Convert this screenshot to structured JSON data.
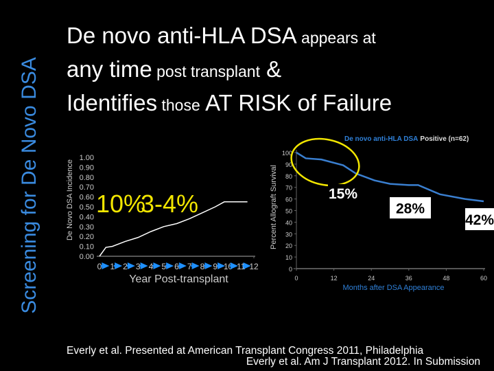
{
  "slide": {
    "side_title": "Screening for De Novo DSA",
    "headline": [
      [
        {
          "text": "De novo anti-HLA DSA",
          "big": true
        },
        {
          "text": " appears at",
          "big": false
        }
      ],
      [
        {
          "text": "any time",
          "big": true
        },
        {
          "text": " post transplant",
          "big": false
        },
        {
          "text": " &",
          "big": true
        }
      ],
      [
        {
          "text": "Identifies",
          "big": true
        },
        {
          "text": " those",
          "big": false
        },
        {
          "text": " AT RISK of Failure",
          "big": true
        }
      ]
    ],
    "citations": [
      "Everly et al. Presented at American Transplant Congress 2011, Philadelphia",
      "Everly et al. Am J Transplant 2012. In Submission"
    ]
  },
  "chart_data": [
    {
      "type": "line",
      "y_label": "De Novo DSA Incidence",
      "x_label": "Year Post-transplant",
      "x": [
        0,
        0.5,
        1,
        2,
        3,
        4,
        5,
        6,
        7,
        8,
        9,
        9.7,
        10,
        11,
        11.5
      ],
      "values": [
        0,
        0.09,
        0.1,
        0.15,
        0.19,
        0.25,
        0.3,
        0.33,
        0.38,
        0.44,
        0.5,
        0.55,
        0.55,
        0.55,
        0.55
      ],
      "color": "#ffffff",
      "tick_marker_color": "#1e90ff",
      "xlim": [
        0,
        12
      ],
      "xticks": [
        0,
        1,
        2,
        3,
        4,
        5,
        6,
        7,
        8,
        9,
        10,
        11,
        12
      ],
      "ylim": [
        0,
        1
      ],
      "yticks": [
        {
          "value": 0,
          "label": "0.00"
        },
        {
          "value": 0.1,
          "label": "0.10"
        },
        {
          "value": 0.2,
          "label": "0.20"
        },
        {
          "value": 0.3,
          "label": "0.30"
        },
        {
          "value": 0.4,
          "label": "0.40"
        },
        {
          "value": 0.5,
          "label": "0.50"
        },
        {
          "value": 0.6,
          "label": "0.60"
        },
        {
          "value": 0.7,
          "label": "0.70"
        },
        {
          "value": 0.8,
          "label": "0.80"
        },
        {
          "value": 0.9,
          "label": "0.90"
        },
        {
          "value": 1,
          "label": "1.00"
        }
      ],
      "annotations": [
        "10%",
        "3-4%"
      ],
      "annotation_color": "#f2e600"
    },
    {
      "type": "line",
      "title": "De novo anti-HLA DSA",
      "subtitle": "Positive (n=62)",
      "title_color": "#2f80d8",
      "y_label": "Percent Allograft Survival",
      "x_label": "Months after DSA Appearance",
      "x_label_color": "#2f80d8",
      "x": [
        0,
        3,
        8,
        15,
        19,
        25,
        30,
        36,
        39,
        46,
        54,
        60
      ],
      "values": [
        100,
        95,
        94,
        89,
        82,
        76,
        73,
        72,
        72,
        64,
        60,
        58
      ],
      "color": "#3a7fd0",
      "xlim": [
        0,
        60
      ],
      "xticks": [
        0,
        12,
        24,
        36,
        48,
        60
      ],
      "ylim": [
        0,
        100
      ],
      "yticks": [
        0,
        10,
        20,
        30,
        40,
        50,
        60,
        70,
        80,
        90,
        100
      ],
      "annotations": [
        "15%",
        "28%",
        "42%"
      ],
      "highlight_color": "#f2e600"
    }
  ]
}
